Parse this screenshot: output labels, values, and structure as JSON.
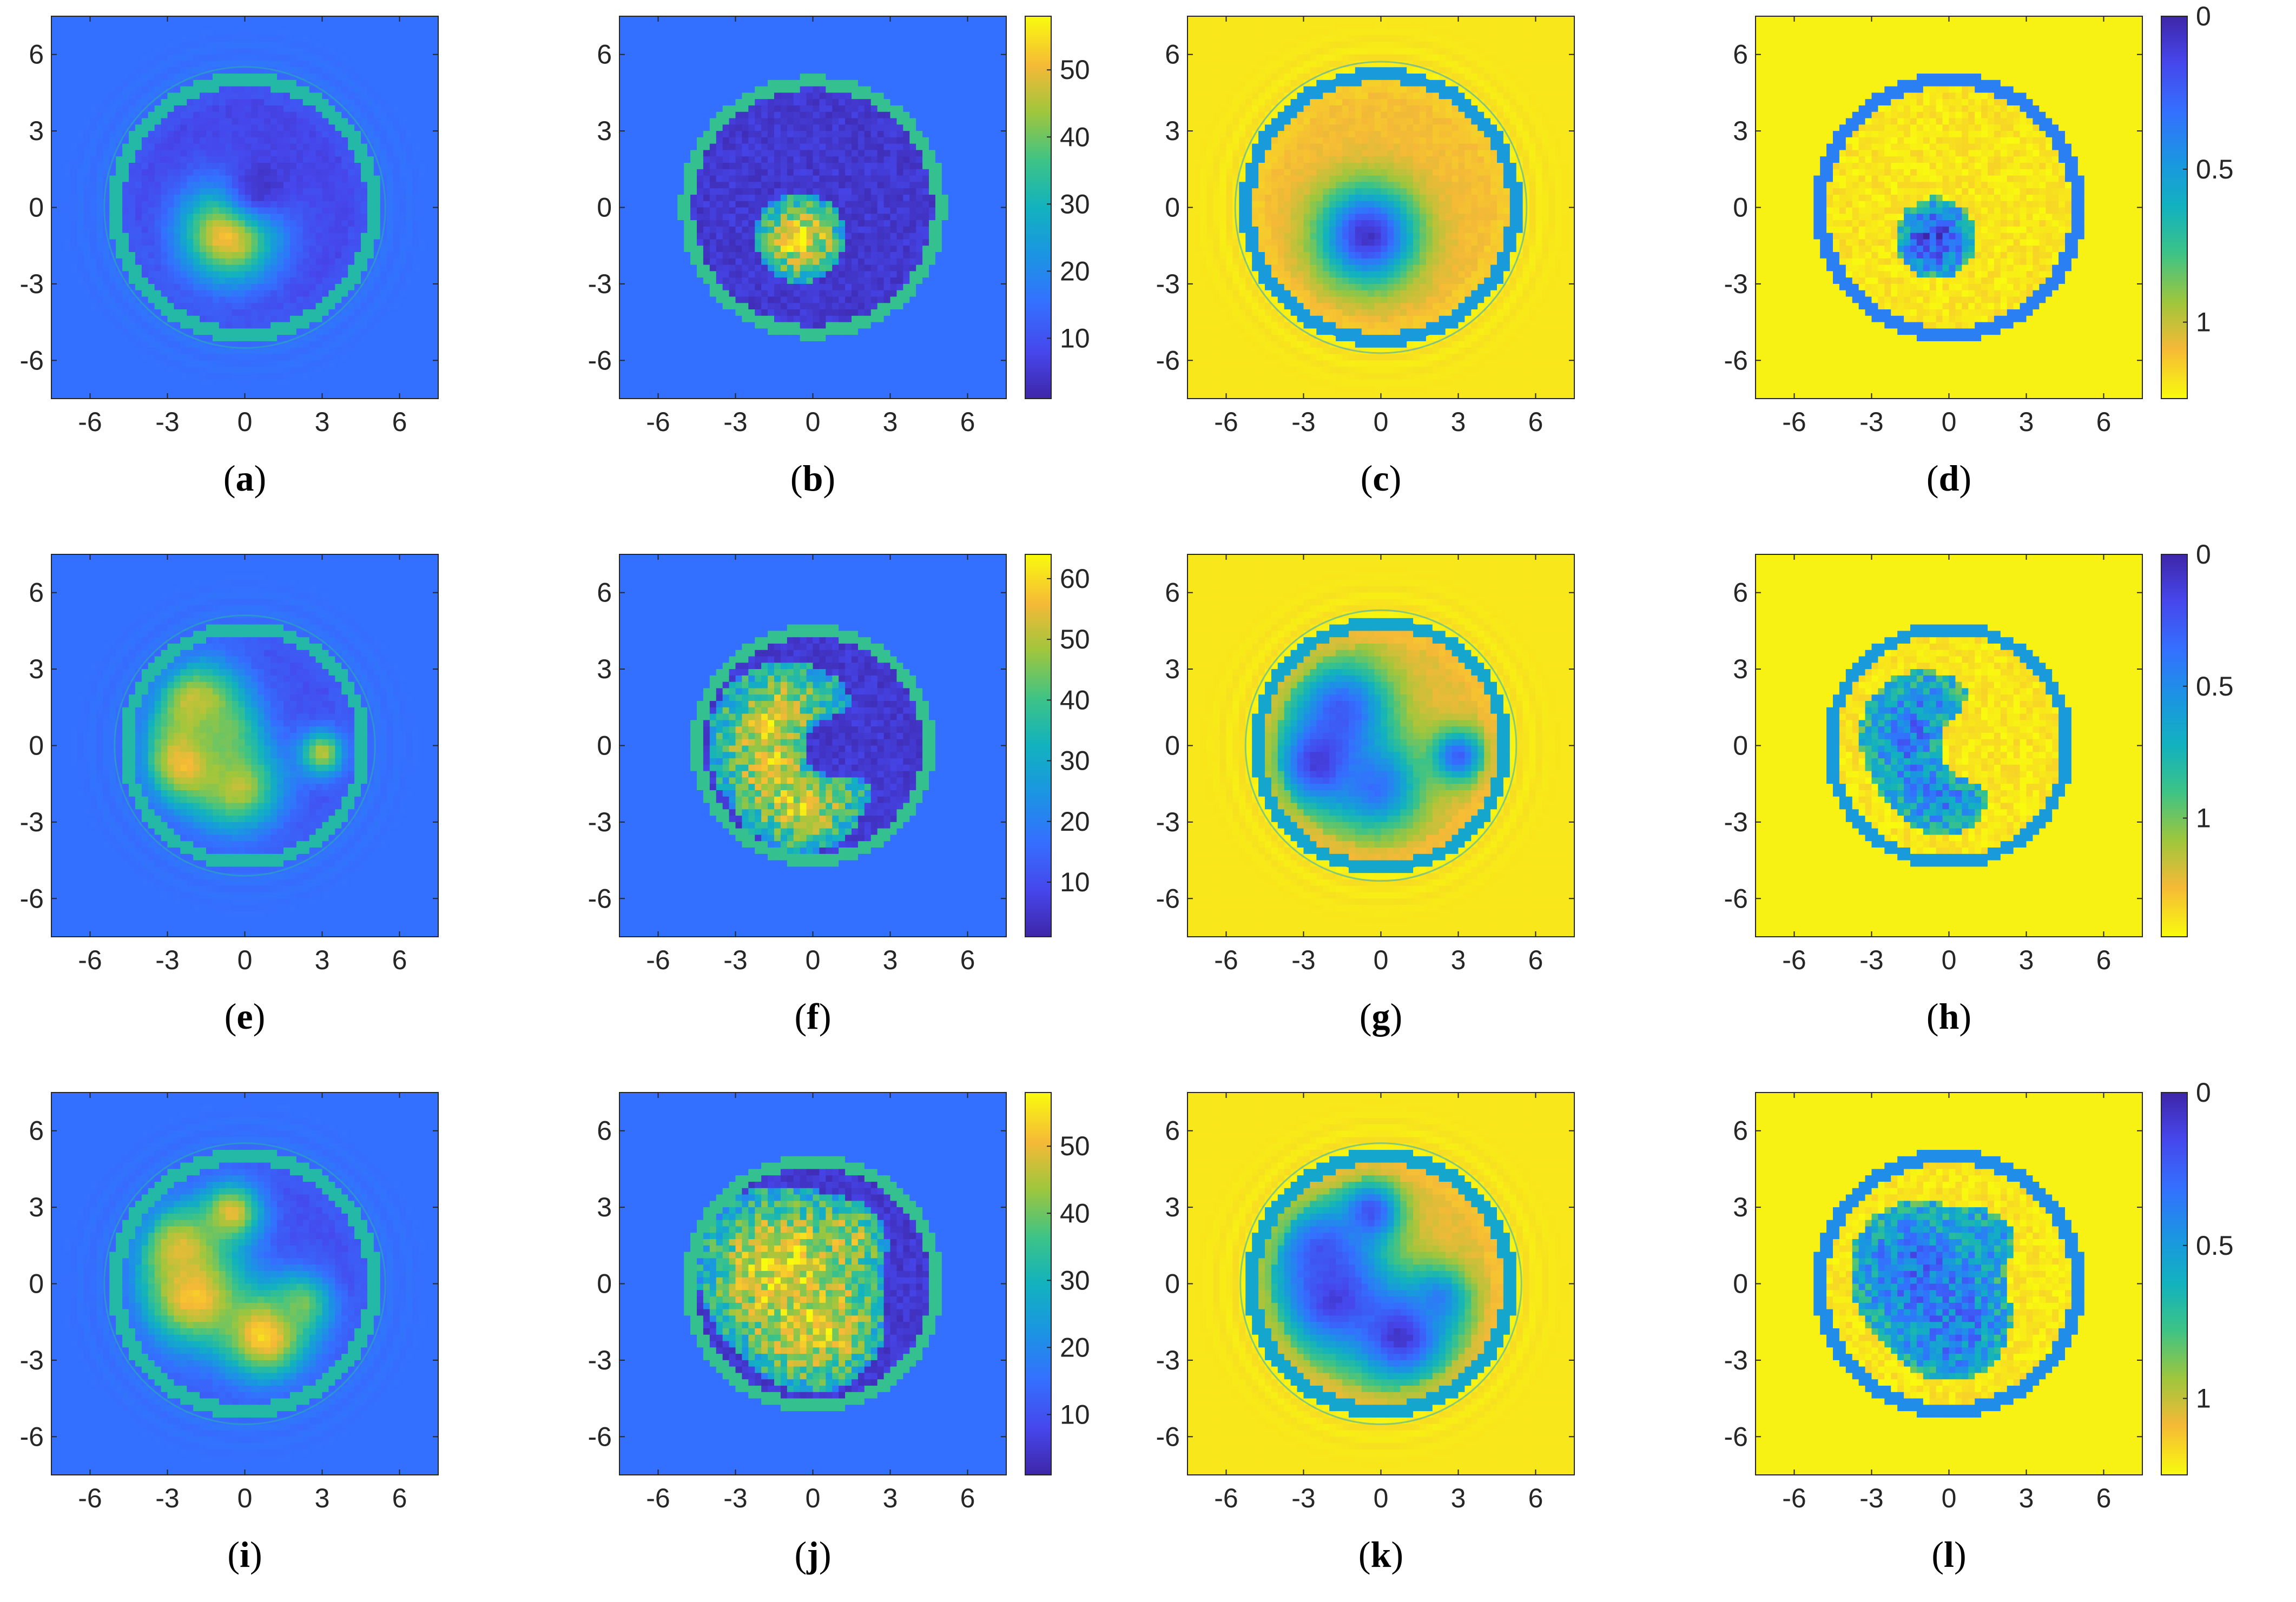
{
  "chart_data": {
    "type": "heatmap",
    "panels": [
      {
        "label": "a",
        "colormap": "parula",
        "colorbar": false,
        "xlim": [
          -7.5,
          7.5
        ],
        "ylim": [
          -7.5,
          7.5
        ],
        "xticks": [
          "-6",
          "-3",
          "0",
          "3",
          "6"
        ],
        "yticks": [
          "6",
          "3",
          "0",
          "-3",
          "-6"
        ],
        "disk_radius": 5.0,
        "ring_style": "smooth",
        "background_value": 0.25,
        "disk_value": 0.12,
        "ring_value": 0.55,
        "blobs": [
          {
            "x": -0.6,
            "y": -1.0,
            "r": 1.3,
            "v": 0.95
          },
          {
            "x": 0.6,
            "y": 0.8,
            "r": 1.0,
            "v": 0.05
          }
        ]
      },
      {
        "label": "b",
        "colormap": "parula",
        "colorbar": true,
        "cbar_ticks": [
          "50",
          "40",
          "30",
          "20",
          "10"
        ],
        "cbar_range": [
          1,
          58
        ],
        "xlim": [
          -7.5,
          7.5
        ],
        "ylim": [
          -7.5,
          7.5
        ],
        "xticks": [
          "-6",
          "-3",
          "0",
          "3",
          "6"
        ],
        "yticks": [
          "6",
          "3",
          "0",
          "-3",
          "-6"
        ],
        "disk_radius": 4.9,
        "ring_style": "pixel",
        "background_value": 0.25,
        "disk_value": 0.07,
        "ring_value": 0.6,
        "blobs": [
          {
            "x": -0.5,
            "y": -1.2,
            "r": 1.4,
            "v": 0.9
          }
        ]
      },
      {
        "label": "c",
        "colormap": "parula_r",
        "colorbar": false,
        "xlim": [
          -7.5,
          7.5
        ],
        "ylim": [
          -7.5,
          7.5
        ],
        "xticks": [
          "-6",
          "-3",
          "0",
          "3",
          "6"
        ],
        "yticks": [
          "6",
          "3",
          "0",
          "-3",
          "-6"
        ],
        "disk_radius": 5.2,
        "ring_style": "smooth",
        "background_value": 0.04,
        "disk_value": 0.12,
        "ring_value": 0.6,
        "blobs": [
          {
            "x": -0.5,
            "y": -1.1,
            "r": 1.3,
            "v": 0.95
          }
        ]
      },
      {
        "label": "d",
        "colormap": "parula_r",
        "colorbar": true,
        "cbar_ticks": [
          "1",
          "0.5",
          "0"
        ],
        "cbar_range": [
          0,
          1.25
        ],
        "xlim": [
          -7.5,
          7.5
        ],
        "ylim": [
          -7.5,
          7.5
        ],
        "xticks": [
          "-6",
          "-3",
          "0",
          "3",
          "6"
        ],
        "yticks": [
          "6",
          "3",
          "0",
          "-3",
          "-6"
        ],
        "disk_radius": 5.0,
        "ring_style": "pixel",
        "background_value": 0.02,
        "disk_value": 0.04,
        "ring_value": 0.7,
        "blobs": [
          {
            "x": -0.5,
            "y": -1.2,
            "r": 1.3,
            "v": 0.9
          }
        ]
      },
      {
        "label": "e",
        "colormap": "parula",
        "colorbar": false,
        "xlim": [
          -7.5,
          7.5
        ],
        "ylim": [
          -7.5,
          7.5
        ],
        "xticks": [
          "-6",
          "-3",
          "0",
          "3",
          "6"
        ],
        "yticks": [
          "6",
          "3",
          "0",
          "-3",
          "-6"
        ],
        "disk_radius": 4.6,
        "ring_style": "smooth",
        "background_value": 0.25,
        "disk_value": 0.15,
        "ring_value": 0.55,
        "blobs": [
          {
            "x": -1.8,
            "y": 1.6,
            "r": 1.2,
            "v": 0.85
          },
          {
            "x": -2.2,
            "y": -0.6,
            "r": 1.2,
            "v": 0.95
          },
          {
            "x": -0.3,
            "y": -1.6,
            "r": 1.2,
            "v": 0.8
          },
          {
            "x": -1.0,
            "y": 0.5,
            "r": 1.0,
            "v": 0.7
          },
          {
            "x": 3.0,
            "y": -0.3,
            "r": 0.6,
            "v": 0.8
          }
        ]
      },
      {
        "label": "f",
        "colormap": "parula",
        "colorbar": true,
        "cbar_ticks": [
          "60",
          "50",
          "40",
          "30",
          "20",
          "10"
        ],
        "cbar_range": [
          1,
          64
        ],
        "xlim": [
          -7.5,
          7.5
        ],
        "ylim": [
          -7.5,
          7.5
        ],
        "xticks": [
          "-6",
          "-3",
          "0",
          "3",
          "6"
        ],
        "yticks": [
          "6",
          "3",
          "0",
          "-3",
          "-6"
        ],
        "disk_radius": 4.5,
        "ring_style": "pixel",
        "background_value": 0.25,
        "disk_value": 0.07,
        "ring_value": 0.6,
        "blobs": [
          {
            "x": -1.0,
            "y": 0.3,
            "r": 2.4,
            "v": 0.9
          },
          {
            "x": -0.3,
            "y": -2.0,
            "r": 1.6,
            "v": 0.85
          },
          {
            "x": 0.8,
            "y": -0.1,
            "r": 0.9,
            "v": 0.05
          }
        ]
      },
      {
        "label": "g",
        "colormap": "parula_r",
        "colorbar": false,
        "xlim": [
          -7.5,
          7.5
        ],
        "ylim": [
          -7.5,
          7.5
        ],
        "xticks": [
          "-6",
          "-3",
          "0",
          "3",
          "6"
        ],
        "yticks": [
          "6",
          "3",
          "0",
          "-3",
          "-6"
        ],
        "disk_radius": 4.8,
        "ring_style": "smooth",
        "background_value": 0.04,
        "disk_value": 0.15,
        "ring_value": 0.55,
        "blobs": [
          {
            "x": -1.5,
            "y": 1.4,
            "r": 1.3,
            "v": 0.8
          },
          {
            "x": -2.3,
            "y": -0.7,
            "r": 1.2,
            "v": 0.95
          },
          {
            "x": -0.2,
            "y": -1.6,
            "r": 1.2,
            "v": 0.75
          },
          {
            "x": 3.0,
            "y": -0.4,
            "r": 0.7,
            "v": 0.8
          }
        ]
      },
      {
        "label": "h",
        "colormap": "parula_r",
        "colorbar": true,
        "cbar_ticks": [
          "1",
          "0.5",
          "0"
        ],
        "cbar_range": [
          0,
          1.45
        ],
        "xlim": [
          -7.5,
          7.5
        ],
        "ylim": [
          -7.5,
          7.5
        ],
        "xticks": [
          "-6",
          "-3",
          "0",
          "3",
          "6"
        ],
        "yticks": [
          "6",
          "3",
          "0",
          "-3",
          "-6"
        ],
        "disk_radius": 4.6,
        "ring_style": "pixel",
        "background_value": 0.02,
        "disk_value": 0.04,
        "ring_value": 0.6,
        "blobs": [
          {
            "x": -1.0,
            "y": 0.5,
            "r": 2.3,
            "v": 0.75
          },
          {
            "x": -0.2,
            "y": -1.8,
            "r": 1.5,
            "v": 0.7
          },
          {
            "x": 0.9,
            "y": 0.0,
            "r": 0.9,
            "v": 0.03
          }
        ]
      },
      {
        "label": "i",
        "colormap": "parula",
        "colorbar": false,
        "xlim": [
          -7.5,
          7.5
        ],
        "ylim": [
          -7.5,
          7.5
        ],
        "xticks": [
          "-6",
          "-3",
          "0",
          "3",
          "6"
        ],
        "yticks": [
          "6",
          "3",
          "0",
          "-3",
          "-6"
        ],
        "disk_radius": 5.0,
        "ring_style": "smooth",
        "background_value": 0.25,
        "disk_value": 0.15,
        "ring_value": 0.55,
        "blobs": [
          {
            "x": -2.5,
            "y": 1.5,
            "r": 1.2,
            "v": 0.8
          },
          {
            "x": -0.5,
            "y": 2.8,
            "r": 0.8,
            "v": 0.85
          },
          {
            "x": -2.0,
            "y": -0.5,
            "r": 1.4,
            "v": 0.9
          },
          {
            "x": 0.8,
            "y": -2.0,
            "r": 1.2,
            "v": 0.95
          },
          {
            "x": 2.2,
            "y": -0.8,
            "r": 0.8,
            "v": 0.7
          }
        ]
      },
      {
        "label": "j",
        "colormap": "parula",
        "colorbar": true,
        "cbar_ticks": [
          "50",
          "40",
          "30",
          "20",
          "10"
        ],
        "cbar_range": [
          1,
          58
        ],
        "xlim": [
          -7.5,
          7.5
        ],
        "ylim": [
          -7.5,
          7.5
        ],
        "xticks": [
          "-6",
          "-3",
          "0",
          "3",
          "6"
        ],
        "yticks": [
          "6",
          "3",
          "0",
          "-3",
          "-6"
        ],
        "disk_radius": 4.8,
        "ring_style": "pixel",
        "background_value": 0.25,
        "disk_value": 0.07,
        "ring_value": 0.6,
        "blobs": [
          {
            "x": -1.2,
            "y": 0.6,
            "r": 2.6,
            "v": 0.9
          },
          {
            "x": 0.2,
            "y": -1.8,
            "r": 1.8,
            "v": 0.85
          },
          {
            "x": 1.5,
            "y": 1.8,
            "r": 0.9,
            "v": 0.75
          }
        ]
      },
      {
        "label": "k",
        "colormap": "parula_r",
        "colorbar": false,
        "xlim": [
          -7.5,
          7.5
        ],
        "ylim": [
          -7.5,
          7.5
        ],
        "xticks": [
          "-6",
          "-3",
          "0",
          "3",
          "6"
        ],
        "yticks": [
          "6",
          "3",
          "0",
          "-3",
          "-6"
        ],
        "disk_radius": 5.0,
        "ring_style": "smooth",
        "background_value": 0.04,
        "disk_value": 0.15,
        "ring_value": 0.55,
        "blobs": [
          {
            "x": -2.3,
            "y": 1.3,
            "r": 1.3,
            "v": 0.8
          },
          {
            "x": -0.4,
            "y": 2.8,
            "r": 0.8,
            "v": 0.85
          },
          {
            "x": -1.8,
            "y": -0.6,
            "r": 1.5,
            "v": 0.9
          },
          {
            "x": 0.8,
            "y": -2.0,
            "r": 1.3,
            "v": 0.95
          },
          {
            "x": 2.2,
            "y": -0.6,
            "r": 0.8,
            "v": 0.7
          }
        ]
      },
      {
        "label": "l",
        "colormap": "parula_r",
        "colorbar": true,
        "cbar_ticks": [
          "1",
          "0.5",
          "0"
        ],
        "cbar_range": [
          0,
          1.25
        ],
        "xlim": [
          -7.5,
          7.5
        ],
        "ylim": [
          -7.5,
          7.5
        ],
        "xticks": [
          "-6",
          "-3",
          "0",
          "3",
          "6"
        ],
        "yticks": [
          "6",
          "3",
          "0",
          "-3",
          "-6"
        ],
        "disk_radius": 5.0,
        "ring_style": "pixel",
        "background_value": 0.02,
        "disk_value": 0.04,
        "ring_value": 0.65,
        "blobs": [
          {
            "x": -1.2,
            "y": 0.6,
            "r": 2.5,
            "v": 0.75
          },
          {
            "x": 0.2,
            "y": -1.8,
            "r": 1.8,
            "v": 0.72
          },
          {
            "x": 1.5,
            "y": 1.8,
            "r": 0.9,
            "v": 0.6
          }
        ]
      }
    ]
  }
}
